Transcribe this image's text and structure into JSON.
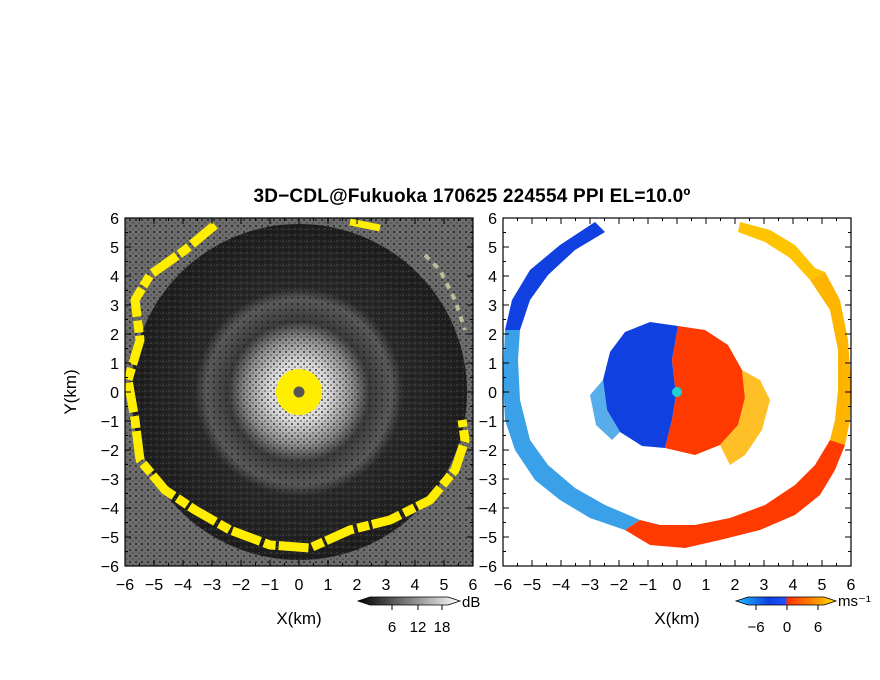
{
  "title": "3D−CDL@Fukuoka 170625 224554 PPI EL=10.0º",
  "colors": {
    "background": "#ffffff",
    "left_panel_bg": "#222222",
    "echo_highlight": "#ffee00",
    "velocity_negative": "#1040e0",
    "velocity_positive": "#ff3a00",
    "velocity_far_negative": "#3aa0e8",
    "velocity_far_positive": "#ffb400"
  },
  "left_panel": {
    "name": "reflectivity",
    "xlabel": "X(km)",
    "ylabel": "Y(km)",
    "xticks": [
      "−6",
      "−5",
      "−4",
      "−3",
      "−2",
      "−1",
      "0",
      "1",
      "2",
      "3",
      "4",
      "5",
      "6"
    ],
    "yticks": [
      "6",
      "5",
      "4",
      "3",
      "2",
      "1",
      "0",
      "−1",
      "−2",
      "−3",
      "−4",
      "−5",
      "−6"
    ],
    "colorbar": {
      "unit": "dB",
      "ticks": [
        "6",
        "12",
        "18"
      ]
    }
  },
  "right_panel": {
    "name": "doppler-velocity",
    "xlabel": "X(km)",
    "xticks": [
      "−6",
      "−5",
      "−4",
      "−3",
      "−2",
      "−1",
      "0",
      "1",
      "2",
      "3",
      "4",
      "5",
      "6"
    ],
    "yticks": [
      "6",
      "5",
      "4",
      "3",
      "2",
      "1",
      "0",
      "−1",
      "−2",
      "−3",
      "−4",
      "−5",
      "−6"
    ],
    "colorbar": {
      "unit": "ms⁻¹",
      "ticks": [
        "−6",
        "0",
        "6"
      ]
    }
  }
}
